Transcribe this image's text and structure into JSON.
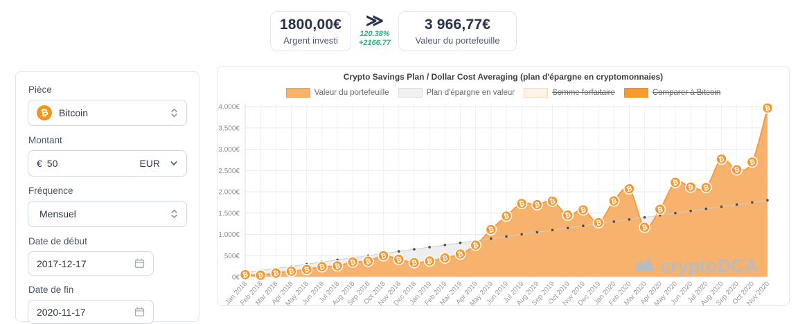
{
  "summary": {
    "invested": {
      "value": "1800,00€",
      "label": "Argent investi"
    },
    "change": {
      "arrow": "≫",
      "percent": "120.38%",
      "delta": "+2166.77"
    },
    "portfolio": {
      "value": "3 966,77€",
      "label": "Valeur du portefeuille"
    }
  },
  "form": {
    "coin": {
      "label": "Pièce",
      "value": "Bitcoin",
      "icon": "bitcoin-icon"
    },
    "amount": {
      "label": "Montant",
      "currency_symbol": "€",
      "value": "50",
      "unit": "EUR"
    },
    "frequency": {
      "label": "Fréquence",
      "value": "Mensuel"
    },
    "start_date": {
      "label": "Date de début",
      "value": "2017-12-17"
    },
    "end_date": {
      "label": "Date de fin",
      "value": "2020-11-17"
    }
  },
  "chart": {
    "title": "Crypto Savings Plan / Dollar Cost Averaging (plan d'épargne en cryptomonnaies)",
    "legend": [
      {
        "label": "Valeur du portefeuille",
        "fill": "#f8b269",
        "border": "#f39c45",
        "hidden": false
      },
      {
        "label": "Plan d'épargne en valeur",
        "fill": "#f1f1f1",
        "border": "#dcdcdc",
        "hidden": false
      },
      {
        "label": "Somme forfaitaire",
        "fill": "#fdf3e5",
        "border": "#f3ddbc",
        "hidden": true
      },
      {
        "label": "Comparer à Bitcoin",
        "fill": "#f79b2e",
        "border": "#ee8d1a",
        "hidden": true
      }
    ],
    "chart_data": {
      "type": "area",
      "title": "Crypto Savings Plan / Dollar Cost Averaging (plan d'épargne en cryptomonnaies)",
      "x": [
        "Jan 2018",
        "Feb 2018",
        "Mar 2018",
        "Apr 2018",
        "May 2018",
        "Jun 2018",
        "Jul 2018",
        "Aug 2018",
        "Sep 2018",
        "Oct 2018",
        "Nov 2018",
        "Dec 2018",
        "Jan 2019",
        "Feb 2019",
        "Mar 2019",
        "Apr 2019",
        "May 2019",
        "Jun 2019",
        "Jul 2019",
        "Aug 2019",
        "Sep 2019",
        "Oct 2019",
        "Nov 2019",
        "Dec 2019",
        "Jan 2020",
        "Feb 2020",
        "Mar 2020",
        "Apr 2020",
        "May 2020",
        "Jun 2020",
        "Jul 2020",
        "Aug 2020",
        "Sep 2020",
        "Oct 2020",
        "Nov 2020"
      ],
      "series": [
        {
          "name": "Valeur du portefeuille",
          "color": "#f7af65",
          "values": [
            55,
            42,
            92,
            135,
            175,
            240,
            258,
            350,
            370,
            497,
            413,
            336,
            374,
            446,
            538,
            746,
            1112,
            1430,
            1725,
            1698,
            1780,
            1452,
            1577,
            1275,
            1785,
            2070,
            1167,
            1588,
            2222,
            2110,
            2100,
            2768,
            2517,
            2698,
            3966.77
          ]
        },
        {
          "name": "Plan d'épargne en valeur",
          "color": "#ededed",
          "values": [
            100,
            150,
            200,
            250,
            300,
            350,
            400,
            450,
            500,
            550,
            600,
            650,
            700,
            750,
            800,
            850,
            900,
            950,
            1000,
            1050,
            1100,
            1150,
            1200,
            1250,
            1300,
            1350,
            1400,
            1450,
            1500,
            1550,
            1600,
            1650,
            1700,
            1750,
            1800
          ]
        }
      ],
      "y_ticks": [
        "0€",
        "500€",
        "1.000€",
        "1.500€",
        "2.000€",
        "2.500€",
        "3.000€",
        "3.500€",
        "4.000€"
      ],
      "ylim": [
        0,
        4000
      ],
      "legend_position": "top",
      "grid": true,
      "watermark": "cryptoDCA",
      "marker_glyph": "₿"
    }
  }
}
